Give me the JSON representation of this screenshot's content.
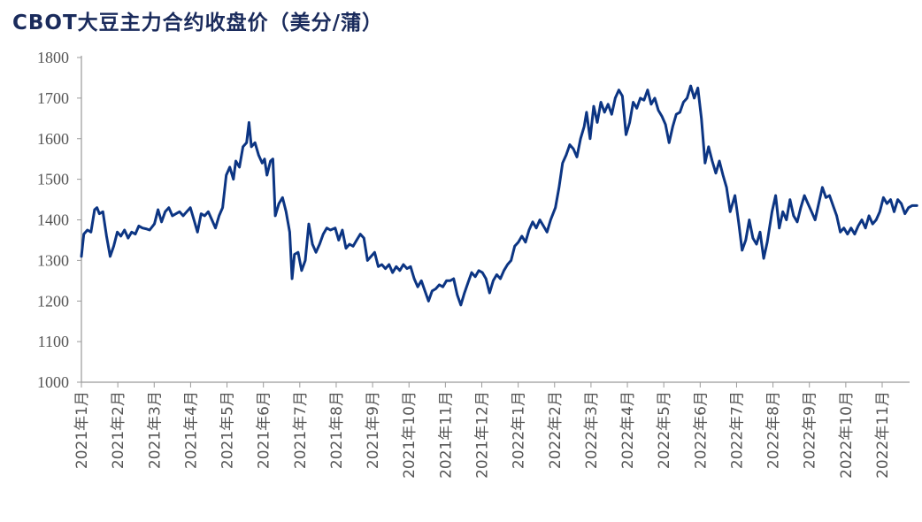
{
  "chart_data": {
    "type": "line",
    "title": "CBOT大豆主力合约收盘价（美分/蒲）",
    "xlabel": "",
    "ylabel": "",
    "ylim": [
      1000,
      1800
    ],
    "yticks": [
      1000,
      1100,
      1200,
      1300,
      1400,
      1500,
      1600,
      1700,
      1800
    ],
    "x_start": "2021-01-01",
    "x_end": "2022-11-30",
    "xticks": [
      "2021年1月",
      "2021年2月",
      "2021年3月",
      "2021年4月",
      "2021年5月",
      "2021年6月",
      "2021年7月",
      "2021年8月",
      "2021年9月",
      "2021年10月",
      "2021年11月",
      "2021年12月",
      "2022年1月",
      "2022年2月",
      "2022年3月",
      "2022年4月",
      "2022年5月",
      "2022年6月",
      "2022年7月",
      "2022年8月",
      "2022年9月",
      "2022年10月",
      "2022年11月"
    ],
    "grid": false,
    "legend": "none",
    "series_color": "#0c3583",
    "series": [
      {
        "name": "",
        "points": [
          [
            "2021-01-01",
            1310
          ],
          [
            "2021-01-03",
            1365
          ],
          [
            "2021-01-06",
            1375
          ],
          [
            "2021-01-09",
            1370
          ],
          [
            "2021-01-12",
            1425
          ],
          [
            "2021-01-14",
            1430
          ],
          [
            "2021-01-16",
            1415
          ],
          [
            "2021-01-19",
            1420
          ],
          [
            "2021-01-22",
            1360
          ],
          [
            "2021-01-25",
            1310
          ],
          [
            "2021-01-28",
            1335
          ],
          [
            "2021-01-31",
            1370
          ],
          [
            "2021-02-03",
            1360
          ],
          [
            "2021-02-06",
            1375
          ],
          [
            "2021-02-09",
            1355
          ],
          [
            "2021-02-12",
            1370
          ],
          [
            "2021-02-15",
            1365
          ],
          [
            "2021-02-18",
            1385
          ],
          [
            "2021-02-21",
            1380
          ],
          [
            "2021-02-24",
            1378
          ],
          [
            "2021-02-27",
            1375
          ],
          [
            "2021-03-03",
            1390
          ],
          [
            "2021-03-06",
            1425
          ],
          [
            "2021-03-09",
            1395
          ],
          [
            "2021-03-12",
            1420
          ],
          [
            "2021-03-15",
            1430
          ],
          [
            "2021-03-18",
            1410
          ],
          [
            "2021-03-21",
            1415
          ],
          [
            "2021-03-24",
            1420
          ],
          [
            "2021-03-27",
            1410
          ],
          [
            "2021-03-30",
            1420
          ],
          [
            "2021-04-02",
            1430
          ],
          [
            "2021-04-05",
            1400
          ],
          [
            "2021-04-08",
            1370
          ],
          [
            "2021-04-11",
            1415
          ],
          [
            "2021-04-14",
            1410
          ],
          [
            "2021-04-17",
            1420
          ],
          [
            "2021-04-20",
            1400
          ],
          [
            "2021-04-23",
            1380
          ],
          [
            "2021-04-26",
            1410
          ],
          [
            "2021-04-29",
            1430
          ],
          [
            "2021-05-02",
            1510
          ],
          [
            "2021-05-05",
            1530
          ],
          [
            "2021-05-08",
            1500
          ],
          [
            "2021-05-10",
            1545
          ],
          [
            "2021-05-13",
            1530
          ],
          [
            "2021-05-16",
            1580
          ],
          [
            "2021-05-19",
            1590
          ],
          [
            "2021-05-21",
            1640
          ],
          [
            "2021-05-23",
            1580
          ],
          [
            "2021-05-26",
            1590
          ],
          [
            "2021-05-29",
            1560
          ],
          [
            "2021-06-01",
            1540
          ],
          [
            "2021-06-03",
            1550
          ],
          [
            "2021-06-05",
            1510
          ],
          [
            "2021-06-08",
            1545
          ],
          [
            "2021-06-10",
            1550
          ],
          [
            "2021-06-12",
            1410
          ],
          [
            "2021-06-15",
            1440
          ],
          [
            "2021-06-18",
            1455
          ],
          [
            "2021-06-21",
            1420
          ],
          [
            "2021-06-24",
            1370
          ],
          [
            "2021-06-26",
            1255
          ],
          [
            "2021-06-28",
            1315
          ],
          [
            "2021-07-01",
            1320
          ],
          [
            "2021-07-04",
            1275
          ],
          [
            "2021-07-07",
            1300
          ],
          [
            "2021-07-10",
            1390
          ],
          [
            "2021-07-13",
            1340
          ],
          [
            "2021-07-16",
            1320
          ],
          [
            "2021-07-19",
            1340
          ],
          [
            "2021-07-22",
            1365
          ],
          [
            "2021-07-25",
            1380
          ],
          [
            "2021-07-28",
            1375
          ],
          [
            "2021-08-01",
            1380
          ],
          [
            "2021-08-04",
            1350
          ],
          [
            "2021-08-07",
            1375
          ],
          [
            "2021-08-10",
            1330
          ],
          [
            "2021-08-13",
            1340
          ],
          [
            "2021-08-16",
            1335
          ],
          [
            "2021-08-19",
            1350
          ],
          [
            "2021-08-22",
            1365
          ],
          [
            "2021-08-25",
            1355
          ],
          [
            "2021-08-28",
            1300
          ],
          [
            "2021-08-31",
            1310
          ],
          [
            "2021-09-03",
            1320
          ],
          [
            "2021-09-06",
            1285
          ],
          [
            "2021-09-09",
            1290
          ],
          [
            "2021-09-12",
            1280
          ],
          [
            "2021-09-15",
            1290
          ],
          [
            "2021-09-18",
            1270
          ],
          [
            "2021-09-21",
            1285
          ],
          [
            "2021-09-24",
            1275
          ],
          [
            "2021-09-27",
            1290
          ],
          [
            "2021-09-30",
            1280
          ],
          [
            "2021-10-03",
            1285
          ],
          [
            "2021-10-06",
            1255
          ],
          [
            "2021-10-09",
            1235
          ],
          [
            "2021-10-12",
            1250
          ],
          [
            "2021-10-15",
            1225
          ],
          [
            "2021-10-18",
            1200
          ],
          [
            "2021-10-21",
            1225
          ],
          [
            "2021-10-24",
            1230
          ],
          [
            "2021-10-27",
            1240
          ],
          [
            "2021-10-30",
            1235
          ],
          [
            "2021-11-02",
            1250
          ],
          [
            "2021-11-05",
            1250
          ],
          [
            "2021-11-08",
            1255
          ],
          [
            "2021-11-11",
            1215
          ],
          [
            "2021-11-14",
            1190
          ],
          [
            "2021-11-17",
            1220
          ],
          [
            "2021-11-20",
            1245
          ],
          [
            "2021-11-23",
            1270
          ],
          [
            "2021-11-26",
            1260
          ],
          [
            "2021-11-29",
            1275
          ],
          [
            "2021-12-02",
            1270
          ],
          [
            "2021-12-05",
            1255
          ],
          [
            "2021-12-08",
            1220
          ],
          [
            "2021-12-11",
            1250
          ],
          [
            "2021-12-14",
            1265
          ],
          [
            "2021-12-17",
            1255
          ],
          [
            "2021-12-20",
            1275
          ],
          [
            "2021-12-23",
            1290
          ],
          [
            "2021-12-26",
            1300
          ],
          [
            "2021-12-29",
            1335
          ],
          [
            "2022-01-01",
            1345
          ],
          [
            "2022-01-04",
            1360
          ],
          [
            "2022-01-07",
            1345
          ],
          [
            "2022-01-10",
            1375
          ],
          [
            "2022-01-13",
            1395
          ],
          [
            "2022-01-16",
            1380
          ],
          [
            "2022-01-19",
            1400
          ],
          [
            "2022-01-22",
            1385
          ],
          [
            "2022-01-25",
            1370
          ],
          [
            "2022-01-28",
            1400
          ],
          [
            "2022-02-01",
            1430
          ],
          [
            "2022-02-04",
            1480
          ],
          [
            "2022-02-07",
            1540
          ],
          [
            "2022-02-10",
            1560
          ],
          [
            "2022-02-13",
            1585
          ],
          [
            "2022-02-16",
            1575
          ],
          [
            "2022-02-19",
            1555
          ],
          [
            "2022-02-22",
            1600
          ],
          [
            "2022-02-25",
            1630
          ],
          [
            "2022-02-27",
            1665
          ],
          [
            "2022-03-02",
            1600
          ],
          [
            "2022-03-05",
            1680
          ],
          [
            "2022-03-08",
            1640
          ],
          [
            "2022-03-11",
            1690
          ],
          [
            "2022-03-14",
            1665
          ],
          [
            "2022-03-17",
            1685
          ],
          [
            "2022-03-20",
            1660
          ],
          [
            "2022-03-23",
            1700
          ],
          [
            "2022-03-26",
            1720
          ],
          [
            "2022-03-29",
            1705
          ],
          [
            "2022-04-01",
            1610
          ],
          [
            "2022-04-04",
            1640
          ],
          [
            "2022-04-07",
            1690
          ],
          [
            "2022-04-10",
            1675
          ],
          [
            "2022-04-13",
            1700
          ],
          [
            "2022-04-16",
            1695
          ],
          [
            "2022-04-19",
            1720
          ],
          [
            "2022-04-22",
            1685
          ],
          [
            "2022-04-25",
            1700
          ],
          [
            "2022-04-28",
            1670
          ],
          [
            "2022-05-01",
            1655
          ],
          [
            "2022-05-04",
            1635
          ],
          [
            "2022-05-07",
            1590
          ],
          [
            "2022-05-10",
            1630
          ],
          [
            "2022-05-13",
            1660
          ],
          [
            "2022-05-16",
            1665
          ],
          [
            "2022-05-19",
            1690
          ],
          [
            "2022-05-22",
            1700
          ],
          [
            "2022-05-25",
            1730
          ],
          [
            "2022-05-28",
            1700
          ],
          [
            "2022-05-31",
            1725
          ],
          [
            "2022-06-03",
            1650
          ],
          [
            "2022-06-06",
            1540
          ],
          [
            "2022-06-09",
            1580
          ],
          [
            "2022-06-12",
            1545
          ],
          [
            "2022-06-15",
            1515
          ],
          [
            "2022-06-18",
            1545
          ],
          [
            "2022-06-21",
            1510
          ],
          [
            "2022-06-24",
            1480
          ],
          [
            "2022-06-27",
            1420
          ],
          [
            "2022-07-01",
            1460
          ],
          [
            "2022-07-04",
            1395
          ],
          [
            "2022-07-07",
            1325
          ],
          [
            "2022-07-10",
            1350
          ],
          [
            "2022-07-13",
            1400
          ],
          [
            "2022-07-16",
            1355
          ],
          [
            "2022-07-19",
            1340
          ],
          [
            "2022-07-22",
            1370
          ],
          [
            "2022-07-25",
            1305
          ],
          [
            "2022-07-28",
            1345
          ],
          [
            "2022-08-01",
            1420
          ],
          [
            "2022-08-04",
            1460
          ],
          [
            "2022-08-07",
            1380
          ],
          [
            "2022-08-10",
            1420
          ],
          [
            "2022-08-13",
            1400
          ],
          [
            "2022-08-16",
            1450
          ],
          [
            "2022-08-19",
            1410
          ],
          [
            "2022-08-22",
            1395
          ],
          [
            "2022-08-25",
            1430
          ],
          [
            "2022-08-28",
            1460
          ],
          [
            "2022-08-31",
            1440
          ],
          [
            "2022-09-03",
            1420
          ],
          [
            "2022-09-06",
            1400
          ],
          [
            "2022-09-09",
            1440
          ],
          [
            "2022-09-12",
            1480
          ],
          [
            "2022-09-15",
            1455
          ],
          [
            "2022-09-18",
            1460
          ],
          [
            "2022-09-21",
            1435
          ],
          [
            "2022-09-24",
            1410
          ],
          [
            "2022-09-27",
            1370
          ],
          [
            "2022-09-30",
            1380
          ],
          [
            "2022-10-03",
            1365
          ],
          [
            "2022-10-06",
            1380
          ],
          [
            "2022-10-09",
            1365
          ],
          [
            "2022-10-12",
            1385
          ],
          [
            "2022-10-15",
            1400
          ],
          [
            "2022-10-18",
            1380
          ],
          [
            "2022-10-21",
            1410
          ],
          [
            "2022-10-24",
            1390
          ],
          [
            "2022-10-27",
            1400
          ],
          [
            "2022-10-30",
            1420
          ],
          [
            "2022-11-02",
            1455
          ],
          [
            "2022-11-05",
            1440
          ],
          [
            "2022-11-08",
            1450
          ],
          [
            "2022-11-11",
            1420
          ],
          [
            "2022-11-14",
            1450
          ],
          [
            "2022-11-17",
            1440
          ],
          [
            "2022-11-20",
            1415
          ],
          [
            "2022-11-23",
            1430
          ],
          [
            "2022-11-26",
            1435
          ],
          [
            "2022-11-30",
            1435
          ]
        ]
      }
    ]
  }
}
